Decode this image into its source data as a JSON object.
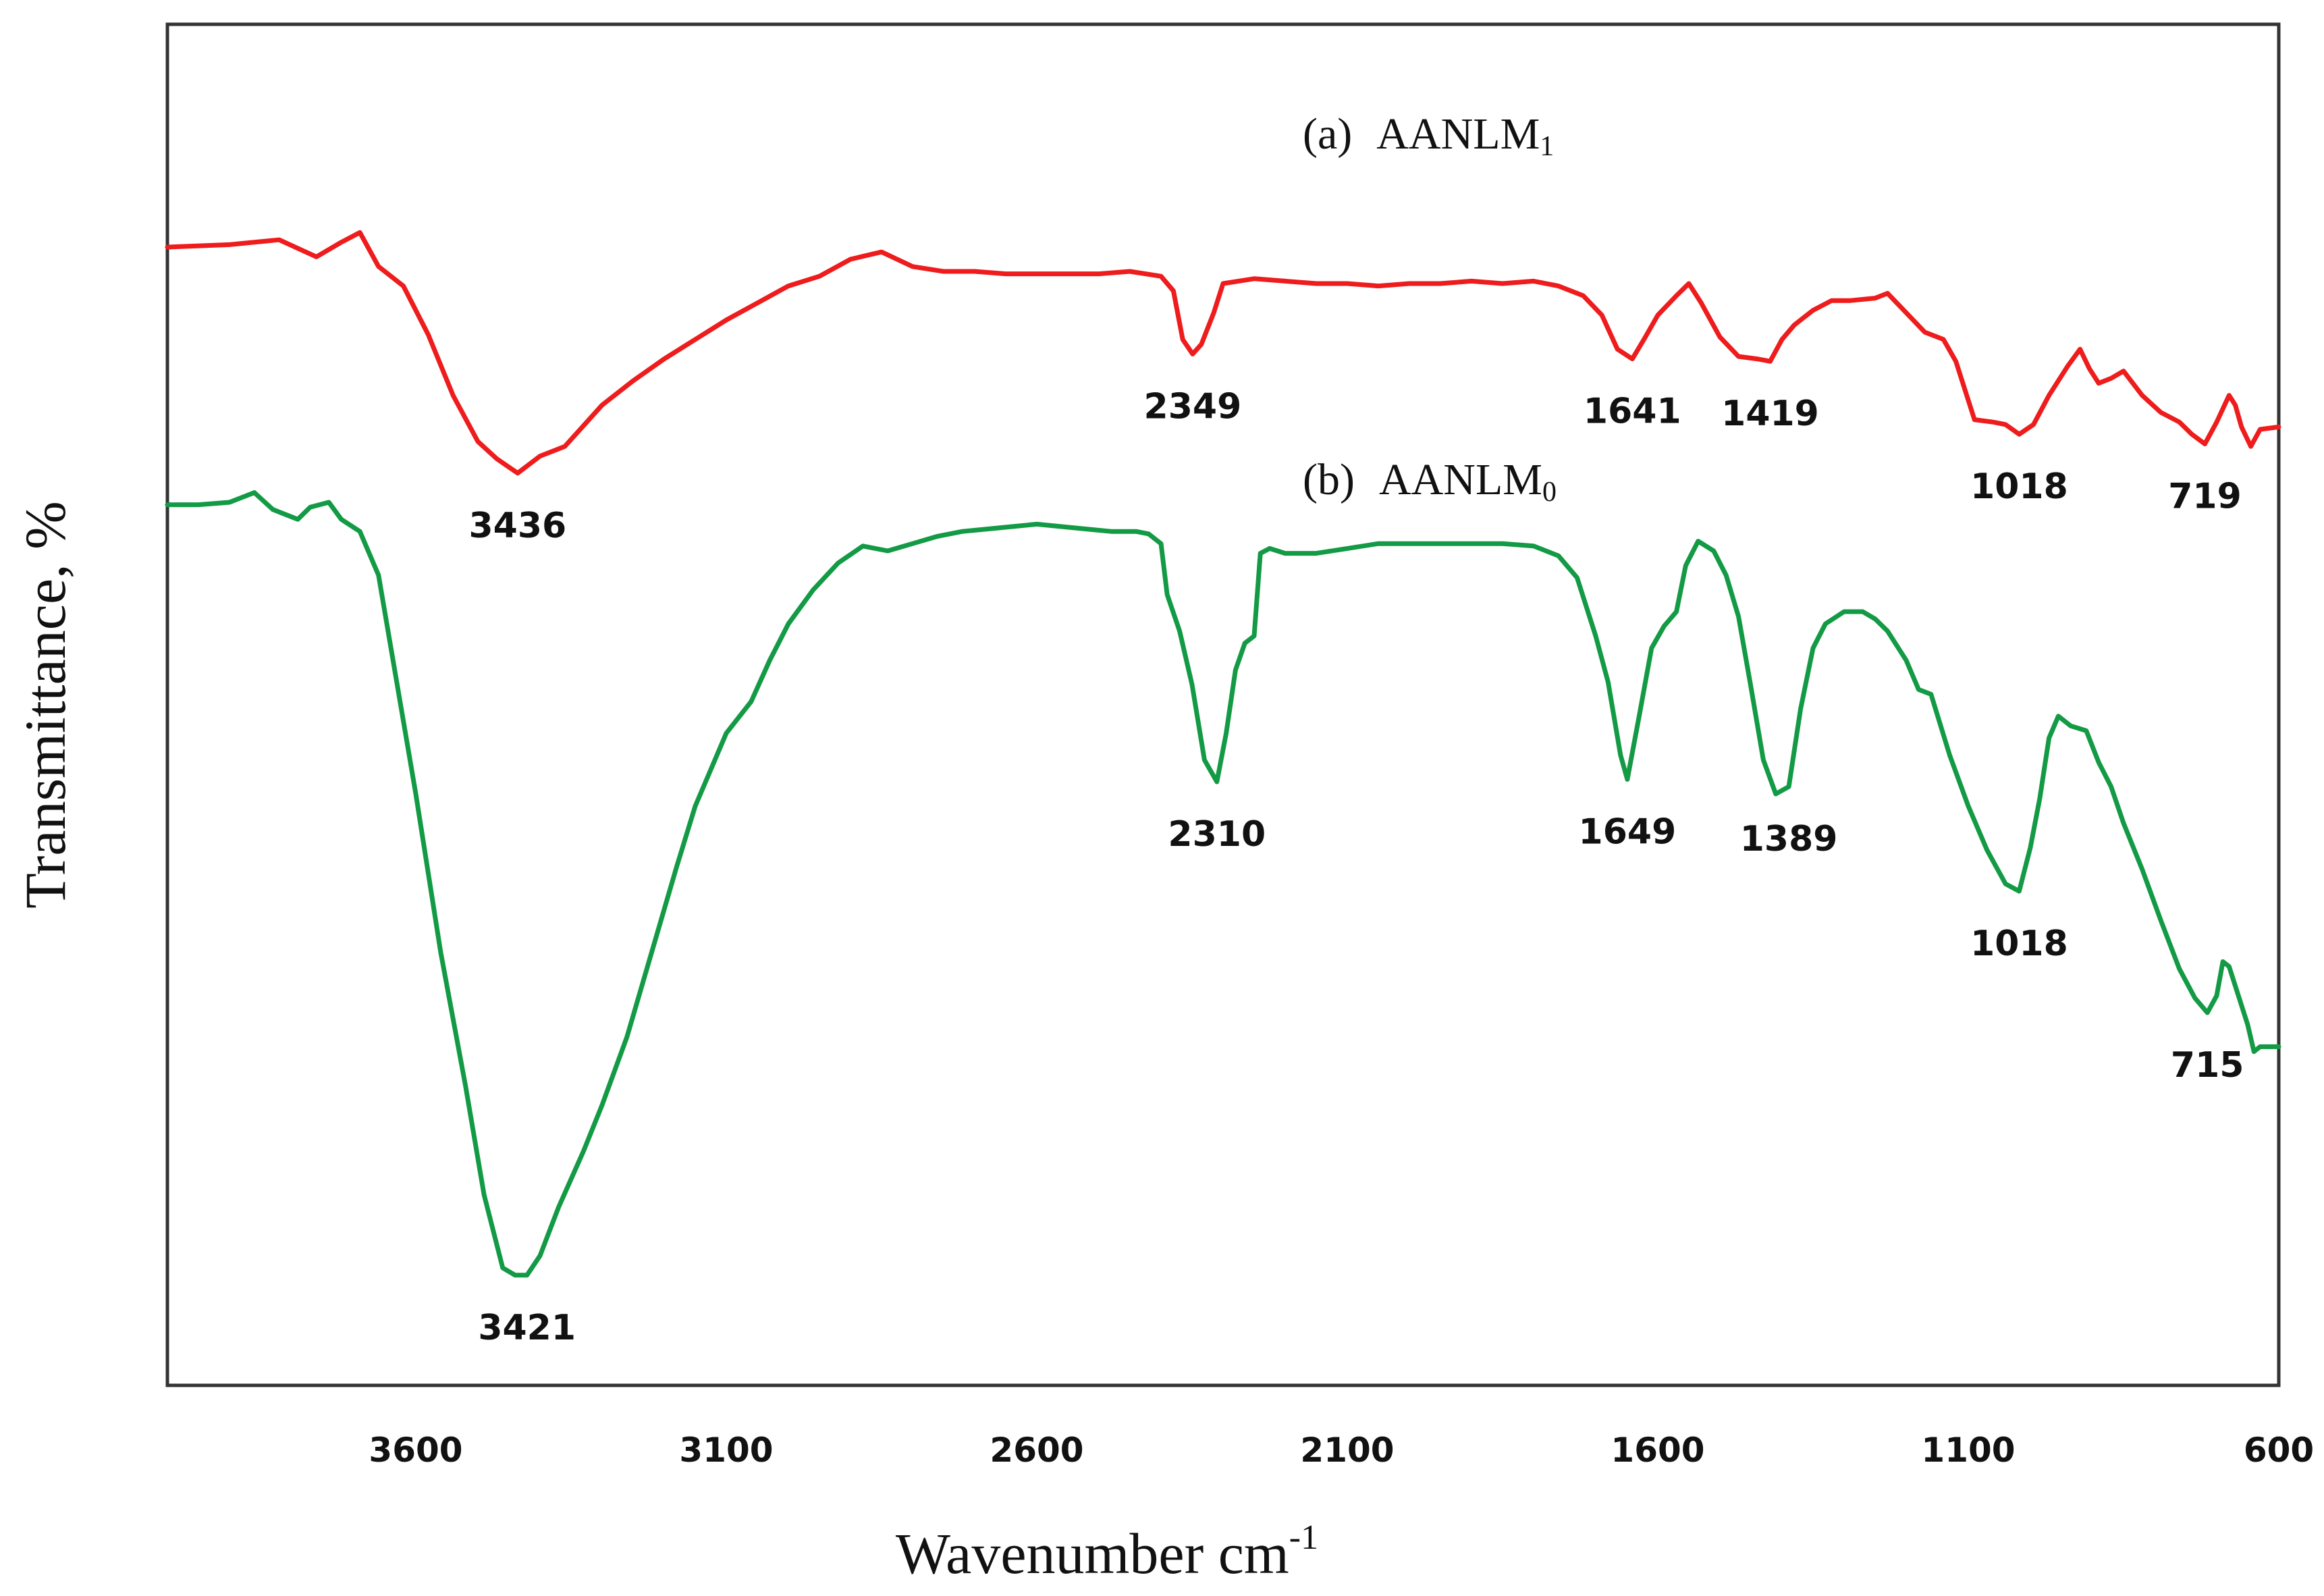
{
  "chart_data": {
    "type": "line",
    "title": "",
    "xlabel": "Wavenumber cm",
    "xlabel_superscript": "-1",
    "ylabel": "Transmittance, %",
    "x_reversed": true,
    "xlim": [
      4000,
      600
    ],
    "ylim": [
      0,
      100
    ],
    "x_ticks": [
      "3600",
      "3100",
      "2600",
      "2100",
      "1600",
      "1100",
      "600"
    ],
    "x_tick_values": [
      3600,
      3100,
      2600,
      2100,
      1600,
      1100,
      600
    ],
    "grid": false,
    "series": [
      {
        "name": "AANLM1",
        "legend_prefix": "(a)",
        "legend_base": "AANLM",
        "legend_subscript": "1",
        "color": "#ee1c1c",
        "points": [
          [
            4000,
            88.0
          ],
          [
            3900,
            88.2
          ],
          [
            3820,
            88.6
          ],
          [
            3760,
            87.2
          ],
          [
            3720,
            88.4
          ],
          [
            3690,
            89.2
          ],
          [
            3660,
            86.4
          ],
          [
            3620,
            84.8
          ],
          [
            3580,
            80.8
          ],
          [
            3540,
            75.8
          ],
          [
            3500,
            72.0
          ],
          [
            3470,
            70.6
          ],
          [
            3436,
            69.4
          ],
          [
            3400,
            70.8
          ],
          [
            3360,
            71.6
          ],
          [
            3300,
            75.0
          ],
          [
            3250,
            77.0
          ],
          [
            3200,
            78.8
          ],
          [
            3150,
            80.4
          ],
          [
            3100,
            82.0
          ],
          [
            3050,
            83.4
          ],
          [
            3000,
            84.8
          ],
          [
            2950,
            85.6
          ],
          [
            2900,
            87.0
          ],
          [
            2850,
            87.6
          ],
          [
            2800,
            86.4
          ],
          [
            2750,
            86.0
          ],
          [
            2700,
            86.0
          ],
          [
            2650,
            85.8
          ],
          [
            2600,
            85.8
          ],
          [
            2550,
            85.8
          ],
          [
            2500,
            85.8
          ],
          [
            2450,
            86.0
          ],
          [
            2400,
            85.6
          ],
          [
            2380,
            84.4
          ],
          [
            2365,
            80.4
          ],
          [
            2349,
            79.2
          ],
          [
            2335,
            80.0
          ],
          [
            2315,
            82.6
          ],
          [
            2300,
            85.0
          ],
          [
            2250,
            85.4
          ],
          [
            2200,
            85.2
          ],
          [
            2150,
            85.0
          ],
          [
            2100,
            85.0
          ],
          [
            2050,
            84.8
          ],
          [
            2000,
            85.0
          ],
          [
            1950,
            85.0
          ],
          [
            1900,
            85.2
          ],
          [
            1850,
            85.0
          ],
          [
            1800,
            85.2
          ],
          [
            1760,
            84.8
          ],
          [
            1720,
            84.0
          ],
          [
            1690,
            82.4
          ],
          [
            1665,
            79.6
          ],
          [
            1641,
            78.8
          ],
          [
            1620,
            80.6
          ],
          [
            1600,
            82.4
          ],
          [
            1570,
            84.0
          ],
          [
            1550,
            85.0
          ],
          [
            1530,
            83.4
          ],
          [
            1500,
            80.6
          ],
          [
            1470,
            79.0
          ],
          [
            1440,
            78.8
          ],
          [
            1419,
            78.6
          ],
          [
            1400,
            80.4
          ],
          [
            1380,
            81.6
          ],
          [
            1350,
            82.8
          ],
          [
            1320,
            83.6
          ],
          [
            1290,
            83.6
          ],
          [
            1250,
            83.8
          ],
          [
            1230,
            84.2
          ],
          [
            1200,
            82.6
          ],
          [
            1170,
            81.0
          ],
          [
            1140,
            80.4
          ],
          [
            1120,
            78.6
          ],
          [
            1090,
            73.8
          ],
          [
            1060,
            73.6
          ],
          [
            1040,
            73.4
          ],
          [
            1018,
            72.6
          ],
          [
            995,
            73.4
          ],
          [
            970,
            75.8
          ],
          [
            940,
            78.2
          ],
          [
            920,
            79.6
          ],
          [
            905,
            78.0
          ],
          [
            890,
            76.8
          ],
          [
            870,
            77.2
          ],
          [
            850,
            77.8
          ],
          [
            820,
            75.8
          ],
          [
            790,
            74.4
          ],
          [
            760,
            73.6
          ],
          [
            740,
            72.6
          ],
          [
            719,
            71.8
          ],
          [
            700,
            73.6
          ],
          [
            680,
            75.8
          ],
          [
            670,
            75.0
          ],
          [
            660,
            73.2
          ],
          [
            645,
            71.6
          ],
          [
            630,
            73.0
          ],
          [
            600,
            73.2
          ]
        ]
      },
      {
        "name": "AANLM0",
        "legend_prefix": "(b)",
        "legend_base": "AANLM",
        "legend_subscript": "0",
        "color": "#139a45",
        "points": [
          [
            4000,
            66.8
          ],
          [
            3950,
            66.8
          ],
          [
            3900,
            67.0
          ],
          [
            3860,
            67.8
          ],
          [
            3830,
            66.4
          ],
          [
            3790,
            65.6
          ],
          [
            3770,
            66.6
          ],
          [
            3740,
            67.0
          ],
          [
            3720,
            65.6
          ],
          [
            3690,
            64.6
          ],
          [
            3660,
            61.0
          ],
          [
            3640,
            55.0
          ],
          [
            3600,
            43.0
          ],
          [
            3560,
            30.0
          ],
          [
            3520,
            19.0
          ],
          [
            3490,
            10.0
          ],
          [
            3460,
            4.0
          ],
          [
            3440,
            3.4
          ],
          [
            3421,
            3.4
          ],
          [
            3400,
            5.0
          ],
          [
            3370,
            9.0
          ],
          [
            3330,
            13.6
          ],
          [
            3300,
            17.4
          ],
          [
            3260,
            23.0
          ],
          [
            3220,
            30.0
          ],
          [
            3180,
            37.0
          ],
          [
            3150,
            42.0
          ],
          [
            3100,
            48.0
          ],
          [
            3060,
            50.6
          ],
          [
            3030,
            54.0
          ],
          [
            3000,
            57.0
          ],
          [
            2960,
            59.8
          ],
          [
            2920,
            62.0
          ],
          [
            2880,
            63.4
          ],
          [
            2840,
            63.0
          ],
          [
            2800,
            63.6
          ],
          [
            2760,
            64.2
          ],
          [
            2720,
            64.6
          ],
          [
            2680,
            64.8
          ],
          [
            2640,
            65.0
          ],
          [
            2600,
            65.2
          ],
          [
            2560,
            65.0
          ],
          [
            2520,
            64.8
          ],
          [
            2480,
            64.6
          ],
          [
            2440,
            64.6
          ],
          [
            2420,
            64.4
          ],
          [
            2400,
            63.6
          ],
          [
            2390,
            59.4
          ],
          [
            2370,
            56.4
          ],
          [
            2350,
            52.0
          ],
          [
            2330,
            45.8
          ],
          [
            2310,
            44.0
          ],
          [
            2295,
            48.0
          ],
          [
            2280,
            53.2
          ],
          [
            2265,
            55.4
          ],
          [
            2250,
            56.0
          ],
          [
            2240,
            62.8
          ],
          [
            2225,
            63.2
          ],
          [
            2200,
            62.8
          ],
          [
            2150,
            62.8
          ],
          [
            2100,
            63.2
          ],
          [
            2050,
            63.6
          ],
          [
            2000,
            63.6
          ],
          [
            1950,
            63.6
          ],
          [
            1900,
            63.6
          ],
          [
            1850,
            63.6
          ],
          [
            1800,
            63.4
          ],
          [
            1760,
            62.6
          ],
          [
            1730,
            60.8
          ],
          [
            1700,
            56.0
          ],
          [
            1680,
            52.2
          ],
          [
            1660,
            46.2
          ],
          [
            1649,
            44.2
          ],
          [
            1630,
            49.4
          ],
          [
            1610,
            55.0
          ],
          [
            1590,
            56.8
          ],
          [
            1570,
            58.0
          ],
          [
            1555,
            61.8
          ],
          [
            1535,
            63.8
          ],
          [
            1510,
            63.0
          ],
          [
            1490,
            61.0
          ],
          [
            1470,
            57.6
          ],
          [
            1450,
            51.8
          ],
          [
            1430,
            45.8
          ],
          [
            1410,
            43.0
          ],
          [
            1389,
            43.6
          ],
          [
            1370,
            50.0
          ],
          [
            1350,
            55.0
          ],
          [
            1330,
            57.0
          ],
          [
            1300,
            58.0
          ],
          [
            1270,
            58.0
          ],
          [
            1250,
            57.4
          ],
          [
            1230,
            56.4
          ],
          [
            1200,
            54.0
          ],
          [
            1180,
            51.6
          ],
          [
            1160,
            51.2
          ],
          [
            1130,
            46.2
          ],
          [
            1100,
            42.0
          ],
          [
            1070,
            38.4
          ],
          [
            1040,
            35.6
          ],
          [
            1018,
            35.0
          ],
          [
            1000,
            38.6
          ],
          [
            985,
            42.6
          ],
          [
            970,
            47.6
          ],
          [
            955,
            49.4
          ],
          [
            935,
            48.6
          ],
          [
            910,
            48.2
          ],
          [
            890,
            45.6
          ],
          [
            870,
            43.6
          ],
          [
            850,
            40.6
          ],
          [
            820,
            36.8
          ],
          [
            790,
            32.6
          ],
          [
            760,
            28.6
          ],
          [
            735,
            26.2
          ],
          [
            715,
            25.0
          ],
          [
            700,
            26.4
          ],
          [
            690,
            29.2
          ],
          [
            680,
            28.8
          ],
          [
            670,
            27.2
          ],
          [
            660,
            25.6
          ],
          [
            650,
            24.0
          ],
          [
            640,
            21.8
          ],
          [
            630,
            22.2
          ],
          [
            600,
            22.2
          ]
        ]
      }
    ],
    "annotations": [
      {
        "text": "3436",
        "series": "AANLM1",
        "x": 3436,
        "y": 69.4
      },
      {
        "text": "2349",
        "series": "AANLM1",
        "x": 2349,
        "y": 79.2
      },
      {
        "text": "1641",
        "series": "AANLM1",
        "x": 1641,
        "y": 78.8
      },
      {
        "text": "1419",
        "series": "AANLM1",
        "x": 1419,
        "y": 78.6
      },
      {
        "text": "1018",
        "series": "AANLM1",
        "x": 1018,
        "y": 72.6
      },
      {
        "text": "719",
        "series": "AANLM1",
        "x": 719,
        "y": 71.8
      },
      {
        "text": "3421",
        "series": "AANLM0",
        "x": 3421,
        "y": 3.4
      },
      {
        "text": "2310",
        "series": "AANLM0",
        "x": 2310,
        "y": 44.0
      },
      {
        "text": "1649",
        "series": "AANLM0",
        "x": 1649,
        "y": 44.2
      },
      {
        "text": "1389",
        "series": "AANLM0",
        "x": 1389,
        "y": 43.6
      },
      {
        "text": "1018",
        "series": "AANLM0",
        "x": 1018,
        "y": 35.0
      },
      {
        "text": "715",
        "series": "AANLM0",
        "x": 715,
        "y": 25.0
      }
    ]
  }
}
